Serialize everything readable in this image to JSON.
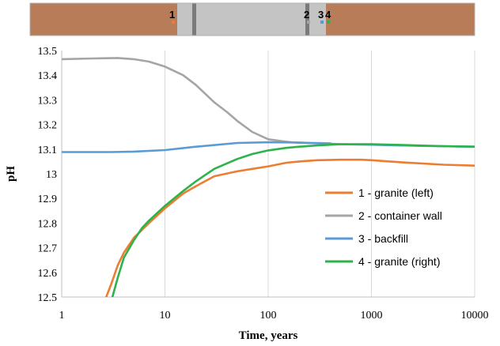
{
  "schematic": {
    "markers": [
      "1",
      "2",
      "3",
      "4"
    ],
    "colors": {
      "granite": "#b87d58",
      "container": "#c4c4c4",
      "wall": "#7b7b7b",
      "border": "#b0b0b0",
      "marker_1": "#ed7d31",
      "marker_2": "#a5a5a5",
      "marker_3": "#5b9bd5",
      "marker_4": "#2db34a"
    }
  },
  "chart_data": {
    "type": "line",
    "title": "",
    "xlabel": "Time, years",
    "ylabel": "pH",
    "xscale": "log",
    "xlim": [
      1,
      10000
    ],
    "ylim": [
      12.5,
      13.5
    ],
    "xticks": [
      "1",
      "10",
      "100",
      "1000",
      "10000"
    ],
    "yticks": [
      "12.5",
      "12.6",
      "12.7",
      "12.8",
      "12.9",
      "13",
      "13.1",
      "13.2",
      "13.3",
      "13.4",
      "13.5"
    ],
    "grid": "vertical",
    "legend_position": "right",
    "series": [
      {
        "name": "1 - granite (left)",
        "color": "#ed7d31",
        "points": [
          [
            2.7,
            12.5
          ],
          [
            3,
            12.55
          ],
          [
            3.5,
            12.63
          ],
          [
            4,
            12.68
          ],
          [
            5,
            12.74
          ],
          [
            7,
            12.8
          ],
          [
            10,
            12.86
          ],
          [
            15,
            12.92
          ],
          [
            20,
            12.95
          ],
          [
            30,
            12.99
          ],
          [
            50,
            13.01
          ],
          [
            70,
            13.02
          ],
          [
            100,
            13.03
          ],
          [
            150,
            13.045
          ],
          [
            200,
            13.05
          ],
          [
            300,
            13.055
          ],
          [
            500,
            13.057
          ],
          [
            800,
            13.057
          ],
          [
            1000,
            13.055
          ],
          [
            2000,
            13.046
          ],
          [
            5000,
            13.037
          ],
          [
            10000,
            13.033
          ]
        ]
      },
      {
        "name": "2 - container wall",
        "color": "#a5a5a5",
        "points": [
          [
            1,
            13.465
          ],
          [
            2,
            13.468
          ],
          [
            3.5,
            13.47
          ],
          [
            5,
            13.465
          ],
          [
            7,
            13.455
          ],
          [
            10,
            13.435
          ],
          [
            15,
            13.4
          ],
          [
            20,
            13.36
          ],
          [
            30,
            13.29
          ],
          [
            40,
            13.25
          ],
          [
            50,
            13.215
          ],
          [
            70,
            13.17
          ],
          [
            100,
            13.14
          ],
          [
            150,
            13.13
          ],
          [
            200,
            13.125
          ],
          [
            300,
            13.125
          ],
          [
            400,
            13.124
          ]
        ]
      },
      {
        "name": "3 - backfill",
        "color": "#5b9bd5",
        "points": [
          [
            1,
            13.088
          ],
          [
            3,
            13.088
          ],
          [
            5,
            13.09
          ],
          [
            10,
            13.096
          ],
          [
            20,
            13.11
          ],
          [
            50,
            13.125
          ],
          [
            100,
            13.128
          ],
          [
            200,
            13.127
          ],
          [
            500,
            13.12
          ],
          [
            1000,
            13.118
          ],
          [
            3000,
            13.113
          ],
          [
            10000,
            13.11
          ]
        ]
      },
      {
        "name": "4 - granite (right)",
        "color": "#2db34a",
        "points": [
          [
            3.1,
            12.5
          ],
          [
            3.5,
            12.58
          ],
          [
            4,
            12.66
          ],
          [
            5,
            12.73
          ],
          [
            6,
            12.78
          ],
          [
            7,
            12.81
          ],
          [
            10,
            12.87
          ],
          [
            15,
            12.93
          ],
          [
            20,
            12.97
          ],
          [
            30,
            13.02
          ],
          [
            50,
            13.06
          ],
          [
            70,
            13.08
          ],
          [
            100,
            13.095
          ],
          [
            150,
            13.105
          ],
          [
            200,
            13.11
          ],
          [
            300,
            13.115
          ],
          [
            500,
            13.12
          ],
          [
            1000,
            13.12
          ],
          [
            2000,
            13.117
          ],
          [
            5000,
            13.112
          ],
          [
            10000,
            13.11
          ]
        ]
      }
    ]
  }
}
